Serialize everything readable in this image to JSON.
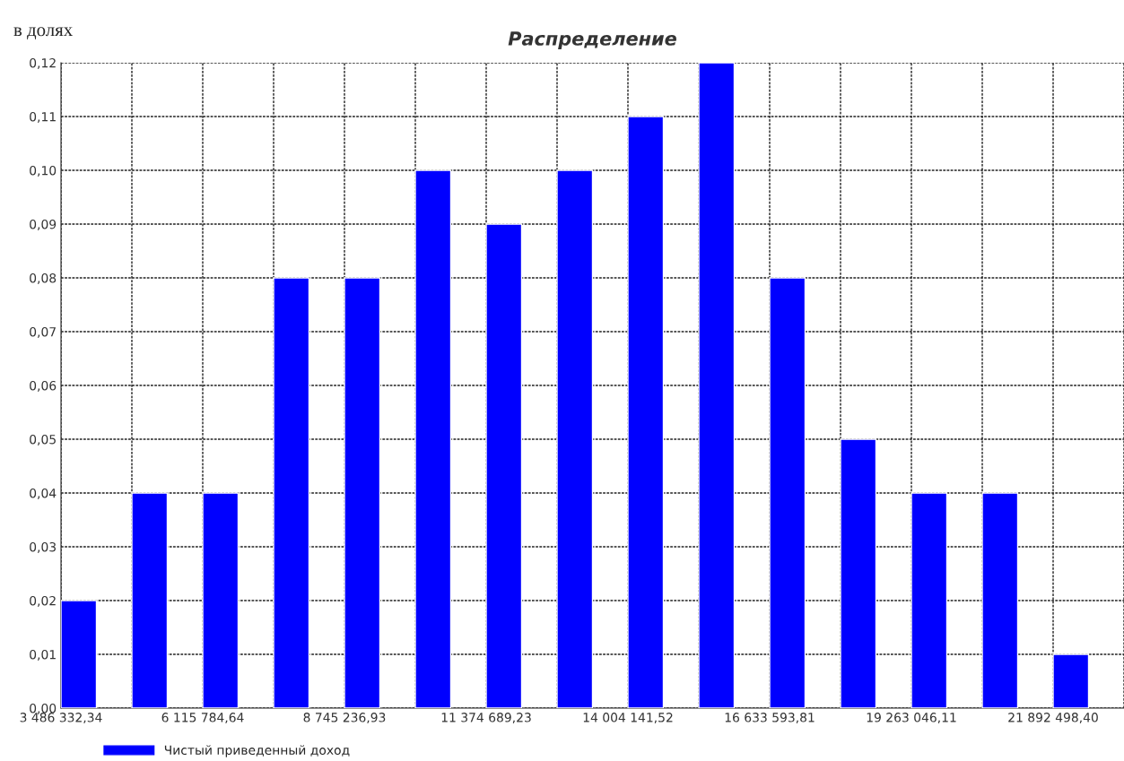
{
  "chart_data": {
    "type": "bar",
    "title": "Распределение",
    "annotations": [
      "в долях"
    ],
    "x": [
      3815013.88,
      5129740.03,
      6444466.18,
      7759192.33,
      9073918.48,
      10388644.63,
      11703370.78,
      13018096.93,
      14332823.08,
      15647549.23,
      16962275.38,
      18277001.53,
      19591727.68,
      20906453.83,
      22221179.98
    ],
    "series": [
      {
        "name": "Чистый приведенный доход",
        "color": "#0000ff",
        "values": [
          0.02,
          0.04,
          0.04,
          0.08,
          0.08,
          0.1,
          0.09,
          0.1,
          0.11,
          0.12,
          0.08,
          0.05,
          0.04,
          0.04,
          0.01
        ]
      }
    ],
    "xlim": [
      3486332.34,
      23207224.55
    ],
    "xticks": [
      {
        "value": 3486332.34,
        "label": "3 486 332,34"
      },
      {
        "value": 4801058.49,
        "label": null
      },
      {
        "value": 6115784.64,
        "label": "6 115 784,64"
      },
      {
        "value": 7430510.79,
        "label": null
      },
      {
        "value": 8745236.93,
        "label": "8 745 236,93"
      },
      {
        "value": 10059963.08,
        "label": null
      },
      {
        "value": 11374689.23,
        "label": "11 374 689,23"
      },
      {
        "value": 12689415.38,
        "label": null
      },
      {
        "value": 14004141.52,
        "label": "14 004 141,52"
      },
      {
        "value": 15318867.67,
        "label": null
      },
      {
        "value": 16633593.81,
        "label": "16 633 593,81"
      },
      {
        "value": 17948319.96,
        "label": null
      },
      {
        "value": 19263046.11,
        "label": "19 263 046,11"
      },
      {
        "value": 20577772.26,
        "label": null
      },
      {
        "value": 21892498.4,
        "label": "21 892 498,40"
      },
      {
        "value": 23207224.55,
        "label": null
      }
    ],
    "ylim": [
      0,
      0.12
    ],
    "yticks": [
      {
        "value": 0,
        "label": "0,00"
      },
      {
        "value": 0.01,
        "label": "0,01"
      },
      {
        "value": 0.02,
        "label": "0,02"
      },
      {
        "value": 0.03,
        "label": "0,03"
      },
      {
        "value": 0.04,
        "label": "0,04"
      },
      {
        "value": 0.05,
        "label": "0,05"
      },
      {
        "value": 0.06,
        "label": "0,06"
      },
      {
        "value": 0.07,
        "label": "0,07"
      },
      {
        "value": 0.08,
        "label": "0,08"
      },
      {
        "value": 0.09,
        "label": "0,09"
      },
      {
        "value": 0.1,
        "label": "0,10"
      },
      {
        "value": 0.11,
        "label": "0,11"
      },
      {
        "value": 0.12,
        "label": "0,12"
      }
    ],
    "grid": true,
    "legend": "bottom left"
  }
}
